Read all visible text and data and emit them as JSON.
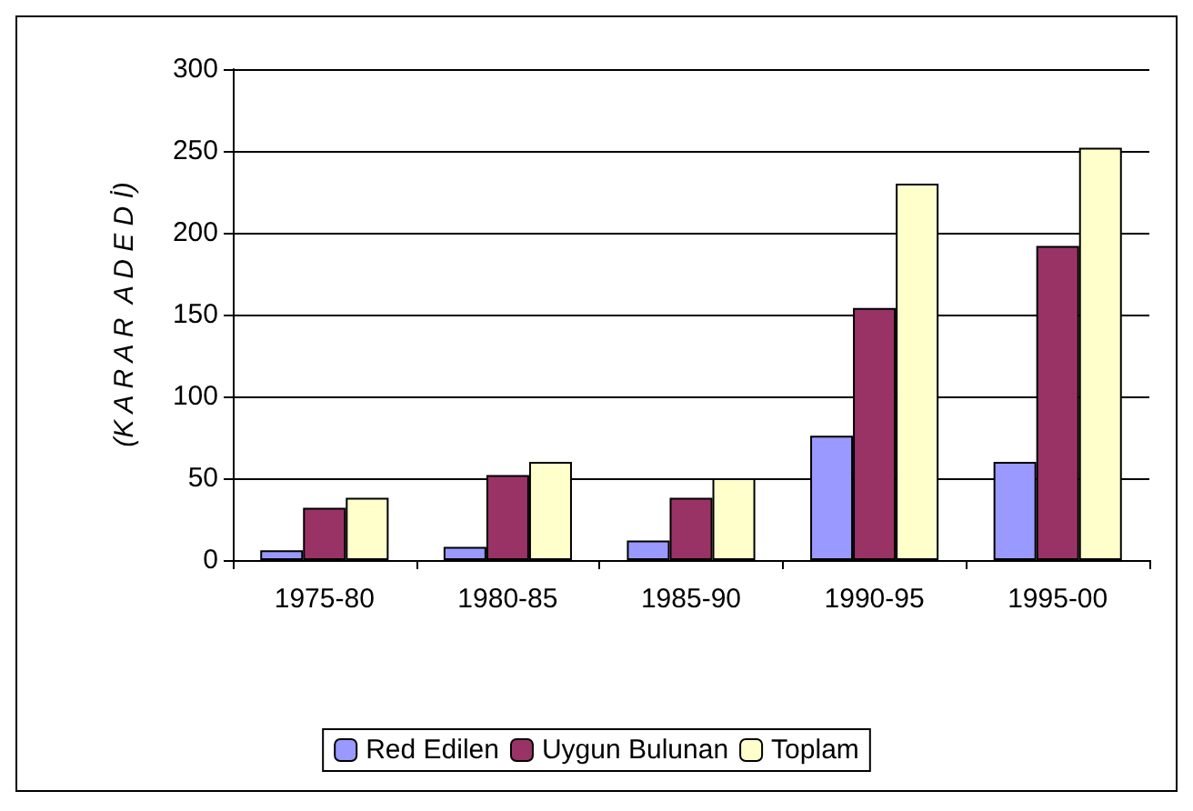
{
  "chart_data": {
    "type": "bar",
    "ylabel": "(K A R A R  A D E D İ)",
    "categories": [
      "1975-80",
      "1980-85",
      "1985-90",
      "1990-95",
      "1995-00"
    ],
    "series": [
      {
        "name": "Red Edilen",
        "color": "#9999ff",
        "values": [
          6,
          8,
          12,
          76,
          60
        ]
      },
      {
        "name": "Uygun Bulunan",
        "color": "#993366",
        "values": [
          32,
          52,
          38,
          154,
          192
        ]
      },
      {
        "name": "Toplam",
        "color": "#ffffcc",
        "values": [
          38,
          60,
          50,
          230,
          252
        ]
      }
    ],
    "ylim": [
      0,
      300
    ],
    "yticks": [
      0,
      50,
      100,
      150,
      200,
      250,
      300
    ],
    "grid": "y",
    "legend": "bottom"
  }
}
